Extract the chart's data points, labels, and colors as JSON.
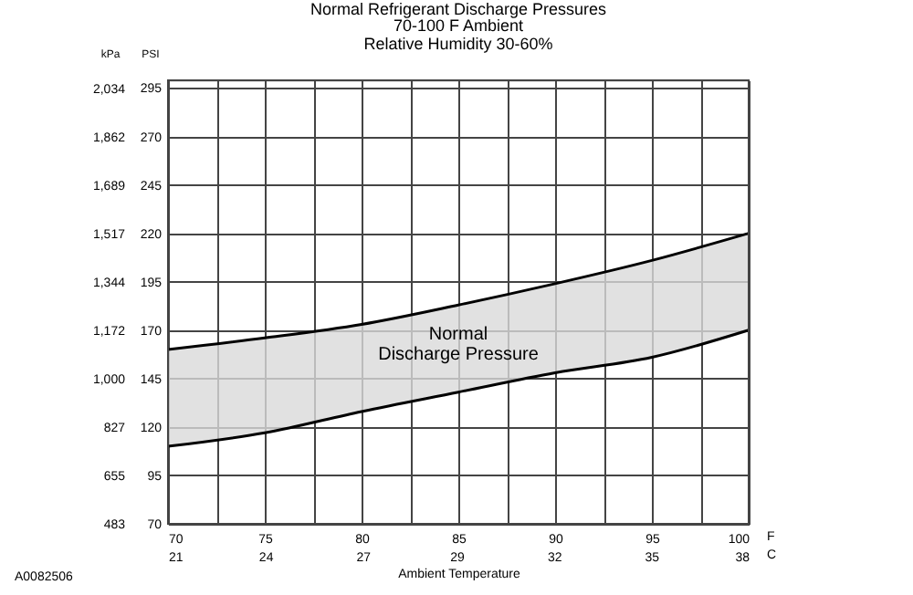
{
  "chart_data": {
    "type": "line",
    "title": "Normal Refrigerant Discharge Pressures",
    "subtitle": "70-100 F Ambient\nRelative Humidity 30-60%",
    "xlabel": "Ambient Temperature",
    "ylabel": "PSI",
    "y2label": "kPa",
    "x": [
      70,
      75,
      80,
      85,
      90,
      95,
      100
    ],
    "series": [
      {
        "color": "#000000",
        "values": [
          160,
          166,
          173,
          183,
          194,
          206,
          220
        ],
        "lower": [
          110,
          117,
          128,
          138,
          148,
          156,
          170
        ],
        "upper": [
          160,
          166,
          173,
          183,
          194,
          206,
          220
        ]
      },
      {
        "color": "#000000",
        "values": [
          110,
          117,
          128,
          138,
          148,
          156,
          170
        ]
      }
    ],
    "xlim": [
      70,
      100
    ],
    "xticks": [
      70,
      {
        "value": 72.5,
        "label": null
      },
      75,
      {
        "value": 77.5,
        "label": null
      },
      80,
      {
        "value": 82.5,
        "label": null
      },
      85,
      {
        "value": 87.5,
        "label": null
      },
      90,
      {
        "value": 92.5,
        "label": null
      },
      95,
      {
        "value": 97.5,
        "label": null
      },
      100
    ],
    "x2lim": [
      21.1,
      37.8
    ],
    "x2ticks": [
      {
        "value": 21.1,
        "label": "21"
      },
      {
        "value": 23.9,
        "label": "24"
      },
      {
        "value": 26.7,
        "label": "27"
      },
      {
        "value": 29.4,
        "label": "29"
      },
      {
        "value": 32.2,
        "label": "32"
      },
      {
        "value": 35,
        "label": "35"
      },
      {
        "value": 37.8,
        "label": "38"
      }
    ],
    "ylim": [
      70,
      299
    ],
    "yticks": [
      70,
      95,
      120,
      145,
      170,
      195,
      220,
      245,
      270,
      295
    ],
    "y2lim": [
      483,
      2062
    ],
    "y2ticks": [
      483,
      655,
      827,
      {
        "value": 1000,
        "label": "1,000"
      },
      {
        "value": 1172,
        "label": "1,172"
      },
      {
        "value": 1344,
        "label": "1,344"
      },
      {
        "value": 1517,
        "label": "1,517"
      },
      {
        "value": 1689,
        "label": "1,689"
      },
      {
        "value": 1862,
        "label": "1,862"
      },
      {
        "value": 2034,
        "label": "2,034"
      }
    ],
    "grid": true,
    "line_style": "solid",
    "annotations": [
      "F",
      "C",
      "Normal\nDischarge Pressure",
      "A0082506"
    ]
  }
}
